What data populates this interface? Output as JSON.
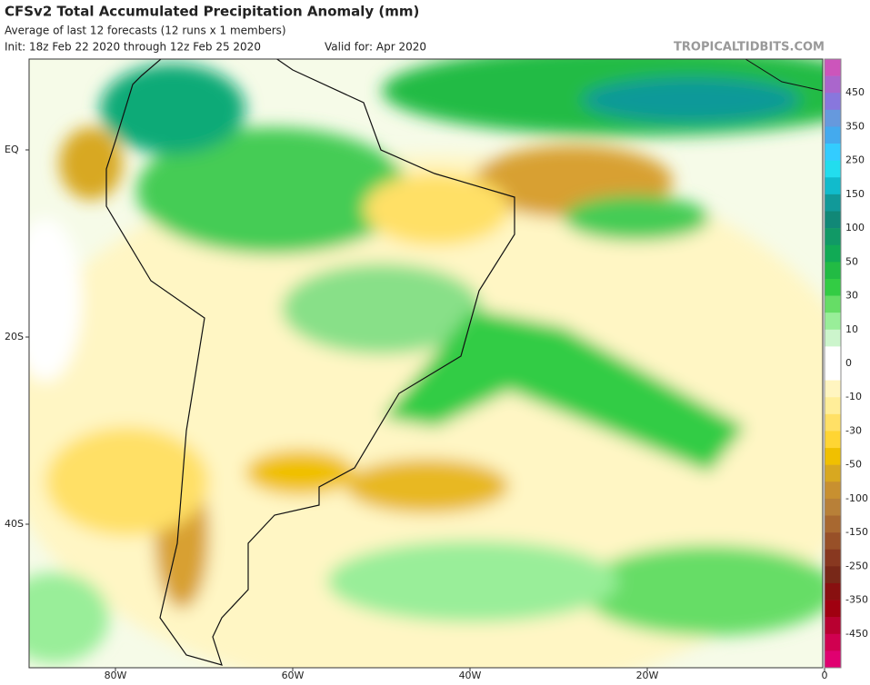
{
  "header": {
    "title": "CFSv2 Total Accumulated Precipitation Anomaly (mm)",
    "subtitle": "Average of last 12 forecasts (12 runs x 1 members)",
    "init": "Init: 18z Feb 22 2020 through 12z Feb 25 2020",
    "valid": "Valid for: Apr 2020",
    "credit": "TROPICALTIDBITS.COM"
  },
  "axes": {
    "lat_labels": [
      "EQ",
      "20S",
      "40S"
    ],
    "lon_labels": [
      "80W",
      "60W",
      "40W",
      "20W",
      "0"
    ]
  },
  "colorbar": {
    "labels": [
      450,
      350,
      250,
      150,
      100,
      50,
      30,
      10,
      0,
      -10,
      -30,
      -50,
      -100,
      -150,
      -250,
      -350,
      -450
    ],
    "colors": [
      "#cc55bb",
      "#aa66cc",
      "#8877dd",
      "#6699dd",
      "#44aaee",
      "#33ccff",
      "#22ddee",
      "#11bbcc",
      "#119999",
      "#118877",
      "#119966",
      "#11aa55",
      "#22bb44",
      "#33cc44",
      "#66dd66",
      "#99ee99",
      "#ccf5cc",
      "#ffffff",
      "#ffffff",
      "#fff5c0",
      "#ffee99",
      "#ffe066",
      "#ffd533",
      "#f0c000",
      "#d8a820",
      "#c89030",
      "#b88038",
      "#a86830",
      "#985028",
      "#883820",
      "#782818",
      "#881010",
      "#a00010",
      "#b80030",
      "#d00050",
      "#e00070"
    ]
  }
}
